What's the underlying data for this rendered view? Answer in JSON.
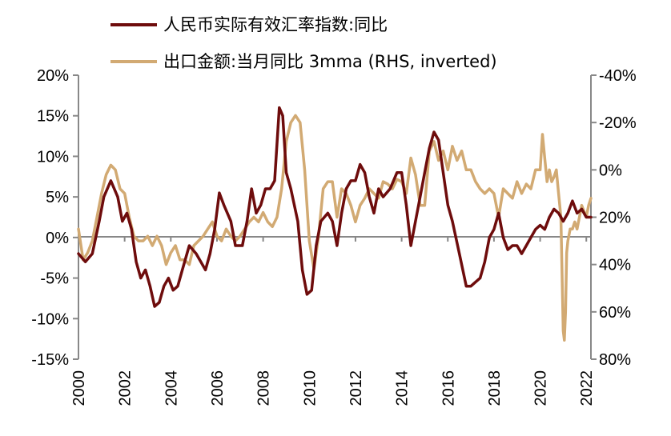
{
  "chart_data": {
    "type": "line",
    "title": "",
    "xlabel": "",
    "ylabel": "",
    "xlim": [
      2000,
      2022.2
    ],
    "ylim_left": [
      -15,
      20
    ],
    "ylim_right": [
      80,
      -40
    ],
    "right_axis_inverted": true,
    "legend": "top",
    "grid": false,
    "x_ticks": [
      2000,
      2002,
      2004,
      2006,
      2008,
      2010,
      2012,
      2014,
      2016,
      2018,
      2020,
      2022
    ],
    "x_tick_labels": [
      "2000",
      "2002",
      "2004",
      "2006",
      "2008",
      "2010",
      "2012",
      "2014",
      "2016",
      "2018",
      "2020",
      "2022"
    ],
    "y_left_ticks": [
      20,
      15,
      10,
      5,
      0,
      -5,
      -10,
      -15
    ],
    "y_left_tick_labels": [
      "20%",
      "15%",
      "10%",
      "5%",
      "0%",
      "-5%",
      "-10%",
      "-15%"
    ],
    "y_right_ticks": [
      -40,
      -20,
      0,
      20,
      40,
      60,
      80
    ],
    "y_right_tick_labels": [
      "-40%",
      "-20%",
      "0%",
      "20%",
      "40%",
      "60%",
      "80%"
    ],
    "series": [
      {
        "name": "人民币实际有效汇率指数:同比",
        "axis": "left",
        "color": "#6e0c0c",
        "x": [
          2000,
          2000.3,
          2000.6,
          2000.9,
          2001.1,
          2001.4,
          2001.7,
          2001.9,
          2002.1,
          2002.3,
          2002.5,
          2002.7,
          2002.9,
          2003.1,
          2003.3,
          2003.5,
          2003.7,
          2003.9,
          2004.1,
          2004.3,
          2004.5,
          2004.8,
          2005.1,
          2005.3,
          2005.5,
          2005.7,
          2005.9,
          2006.1,
          2006.3,
          2006.6,
          2006.8,
          2007.1,
          2007.3,
          2007.5,
          2007.7,
          2007.9,
          2008.1,
          2008.3,
          2008.5,
          2008.7,
          2008.85,
          2009,
          2009.2,
          2009.5,
          2009.7,
          2009.9,
          2010.1,
          2010.3,
          2010.5,
          2010.8,
          2011,
          2011.2,
          2011.4,
          2011.6,
          2011.8,
          2012,
          2012.2,
          2012.4,
          2012.6,
          2012.8,
          2013,
          2013.2,
          2013.5,
          2013.8,
          2014,
          2014.2,
          2014.4,
          2014.6,
          2014.8,
          2015,
          2015.2,
          2015.4,
          2015.6,
          2015.8,
          2016,
          2016.2,
          2016.5,
          2016.8,
          2017,
          2017.2,
          2017.4,
          2017.6,
          2017.8,
          2018,
          2018.2,
          2018.4,
          2018.6,
          2018.8,
          2019,
          2019.2,
          2019.4,
          2019.6,
          2019.8,
          2020,
          2020.2,
          2020.4,
          2020.6,
          2020.8,
          2021,
          2021.2,
          2021.4,
          2021.6,
          2021.8,
          2022,
          2022.2
        ],
        "values": [
          -2,
          -3,
          -2,
          2,
          5,
          7,
          5,
          2,
          3,
          1,
          -3,
          -5,
          -4,
          -6,
          -8.5,
          -8,
          -6,
          -5,
          -6.5,
          -6,
          -4,
          -1,
          -2,
          -3,
          -4,
          -2,
          1,
          5.5,
          4,
          2,
          -1,
          -1,
          2,
          6,
          3,
          4,
          6,
          6,
          7,
          16,
          15,
          8,
          6,
          2,
          -4,
          -7,
          -6.5,
          -1,
          2,
          3,
          2,
          -1,
          3,
          6,
          7,
          7,
          9,
          8,
          5,
          3,
          6,
          5,
          6,
          8,
          8,
          4,
          -1,
          2,
          5,
          8,
          11,
          13,
          12,
          8,
          4,
          2,
          -2,
          -6,
          -6,
          -5.5,
          -5,
          -3,
          0,
          1,
          3,
          0,
          -1.5,
          -1,
          -1,
          -2,
          -1,
          0,
          1,
          1.5,
          1,
          2.5,
          3.5,
          3,
          2,
          3,
          4.5,
          3,
          3.5,
          2.5,
          2.5
        ]
      },
      {
        "name": "出口金额:当月同比 3mma (RHS, inverted)",
        "axis": "right",
        "color": "#d2aa73",
        "x": [
          2000,
          2000.2,
          2000.4,
          2000.6,
          2000.8,
          2001,
          2001.2,
          2001.4,
          2001.6,
          2001.8,
          2002,
          2002.2,
          2002.4,
          2002.6,
          2002.8,
          2003,
          2003.2,
          2003.4,
          2003.6,
          2003.8,
          2004,
          2004.2,
          2004.4,
          2004.6,
          2004.8,
          2005,
          2005.2,
          2005.4,
          2005.6,
          2005.8,
          2006,
          2006.2,
          2006.4,
          2006.6,
          2006.8,
          2007,
          2007.2,
          2007.4,
          2007.6,
          2007.8,
          2008,
          2008.2,
          2008.4,
          2008.6,
          2008.8,
          2009,
          2009.2,
          2009.4,
          2009.6,
          2009.8,
          2010,
          2010.2,
          2010.4,
          2010.6,
          2010.8,
          2011,
          2011.2,
          2011.4,
          2011.6,
          2011.8,
          2012,
          2012.2,
          2012.4,
          2012.6,
          2012.8,
          2013,
          2013.2,
          2013.4,
          2013.6,
          2013.8,
          2014,
          2014.2,
          2014.4,
          2014.6,
          2014.8,
          2015,
          2015.2,
          2015.4,
          2015.6,
          2015.8,
          2016,
          2016.2,
          2016.4,
          2016.6,
          2016.8,
          2017,
          2017.2,
          2017.4,
          2017.6,
          2017.8,
          2018,
          2018.2,
          2018.4,
          2018.6,
          2018.8,
          2019,
          2019.2,
          2019.4,
          2019.6,
          2019.8,
          2020,
          2020.1,
          2020.2,
          2020.3,
          2020.4,
          2020.5,
          2020.6,
          2020.7,
          2020.8,
          2020.9,
          2021,
          2021.05,
          2021.1,
          2021.15,
          2021.2,
          2021.3,
          2021.4,
          2021.5,
          2021.6,
          2021.8,
          2022,
          2022.1,
          2022.2
        ],
        "values": [
          25,
          38,
          35,
          30,
          20,
          10,
          2,
          -2,
          0,
          8,
          10,
          20,
          28,
          30,
          30,
          28,
          32,
          28,
          32,
          40,
          35,
          32,
          38,
          38,
          40,
          32,
          30,
          28,
          25,
          22,
          28,
          30,
          25,
          28,
          30,
          28,
          25,
          22,
          20,
          22,
          18,
          22,
          24,
          20,
          8,
          -12,
          -20,
          -23,
          -20,
          0,
          30,
          42,
          28,
          8,
          5,
          5,
          20,
          8,
          10,
          15,
          22,
          15,
          12,
          8,
          10,
          12,
          5,
          6,
          8,
          4,
          5,
          10,
          -5,
          2,
          15,
          15,
          -8,
          -12,
          -4,
          -8,
          0,
          -10,
          -4,
          -8,
          0,
          0,
          5,
          8,
          10,
          8,
          10,
          20,
          8,
          10,
          12,
          5,
          10,
          6,
          8,
          0,
          0,
          -15,
          -5,
          5,
          0,
          5,
          3,
          0,
          10,
          20,
          68,
          72,
          60,
          35,
          30,
          25,
          25,
          22,
          25,
          15,
          20,
          15,
          12
        ]
      }
    ]
  }
}
